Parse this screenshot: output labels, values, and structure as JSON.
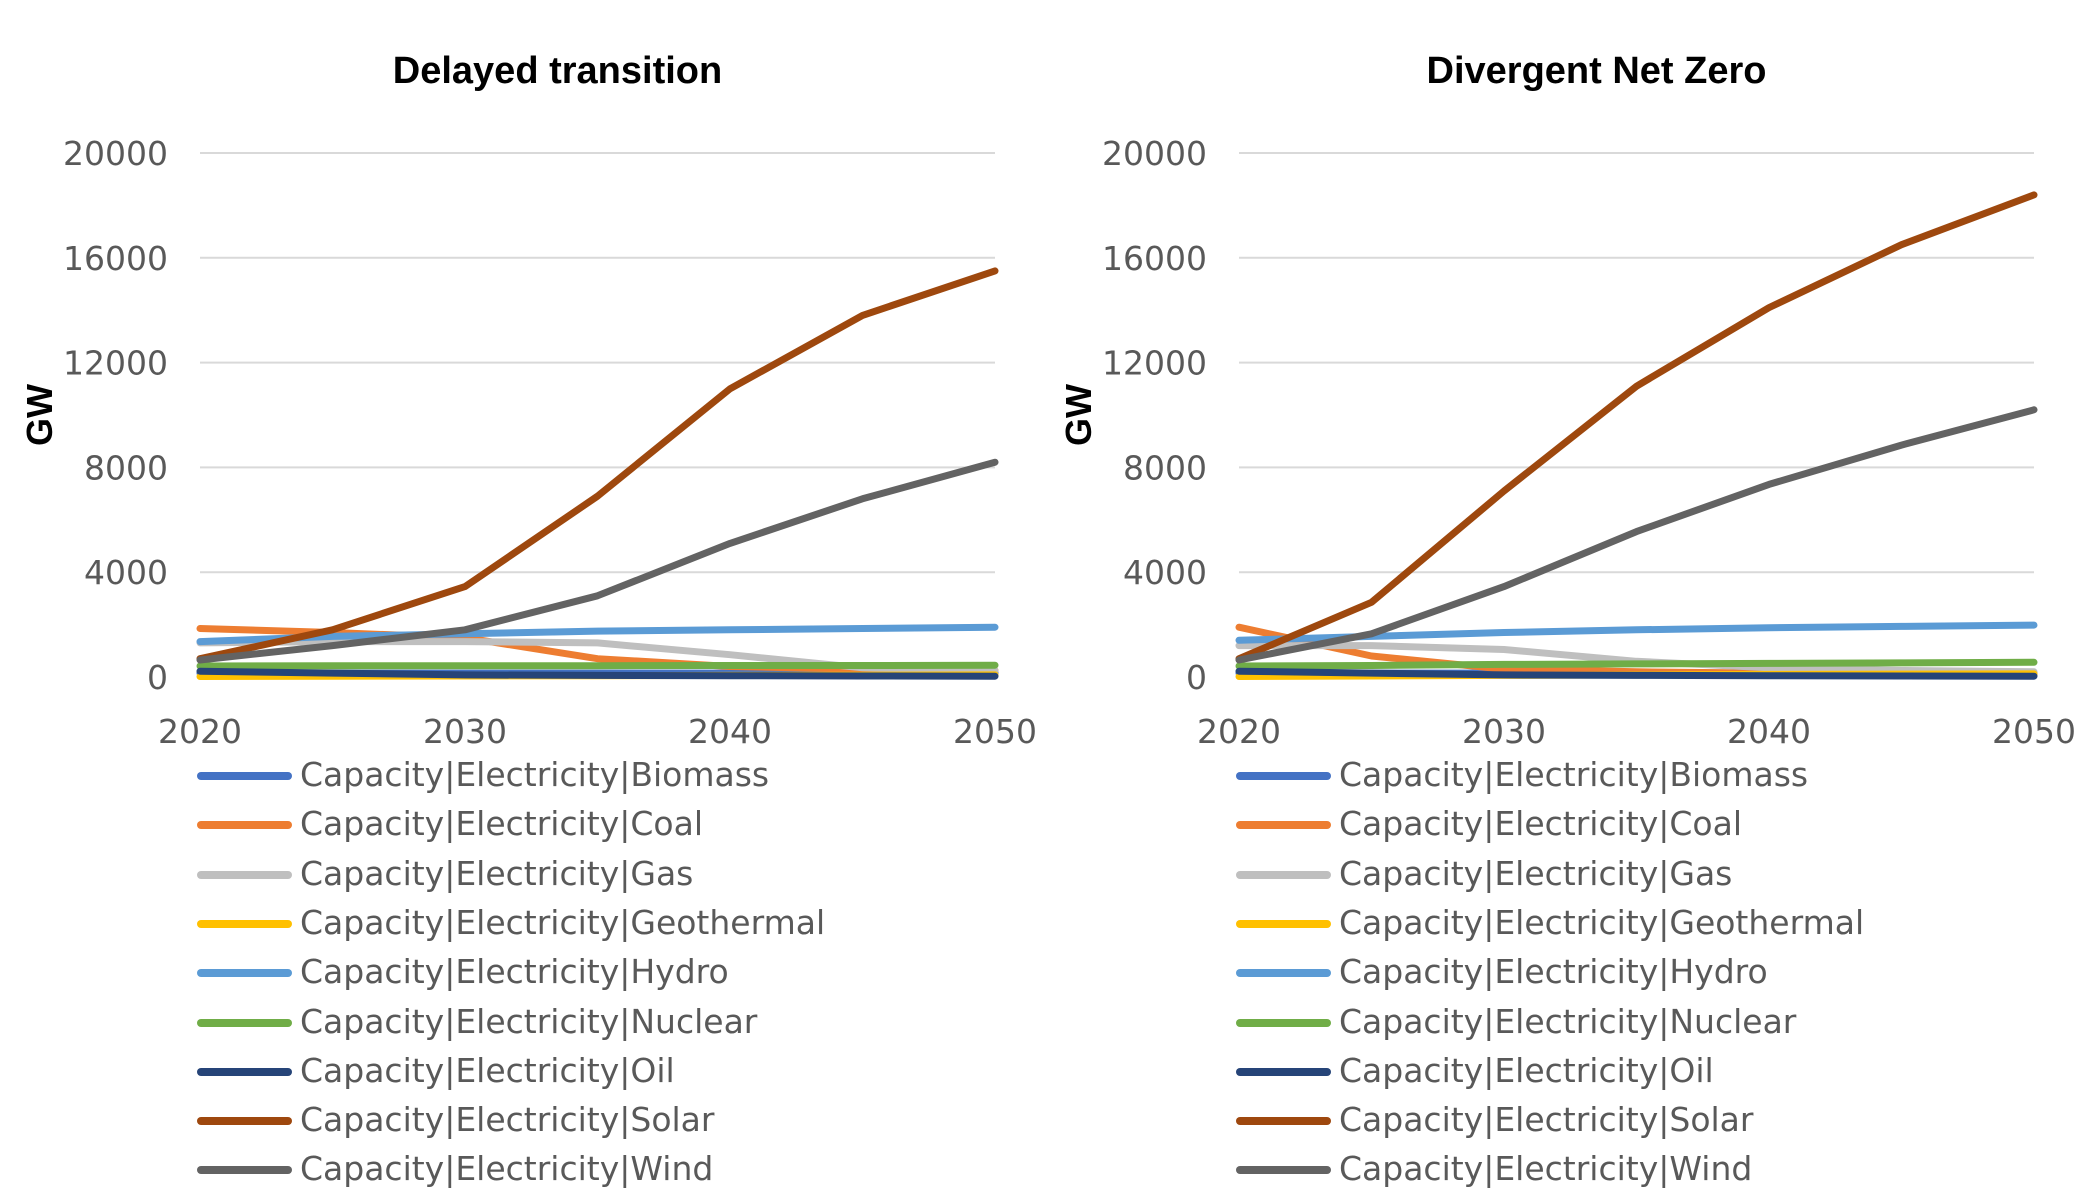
{
  "chart_data": [
    {
      "type": "line",
      "title": "Delayed transition",
      "xlabel": "",
      "ylabel": "GW",
      "ylim": [
        0,
        20000
      ],
      "yticks": [
        "0",
        "4000",
        "8000",
        "12000",
        "16000",
        "20000"
      ],
      "xticks": [
        "2020",
        "2030",
        "2040",
        "2050"
      ],
      "x": [
        2020,
        2025,
        2030,
        2035,
        2040,
        2045,
        2050
      ],
      "grid": "horizontal",
      "legend_position": "bottom",
      "series": [
        {
          "name": "Capacity|Electricity|Biomass",
          "color": "#4472c4",
          "values": [
            150,
            150,
            150,
            150,
            150,
            150,
            150
          ]
        },
        {
          "name": "Capacity|Electricity|Coal",
          "color": "#ed7d31",
          "values": [
            1850,
            1700,
            1500,
            700,
            400,
            300,
            250
          ]
        },
        {
          "name": "Capacity|Electricity|Gas",
          "color": "#bfbfbf",
          "values": [
            1300,
            1350,
            1350,
            1300,
            850,
            350,
            250
          ]
        },
        {
          "name": "Capacity|Electricity|Geothermal",
          "color": "#ffc000",
          "values": [
            20,
            30,
            40,
            50,
            60,
            70,
            80
          ]
        },
        {
          "name": "Capacity|Electricity|Hydro",
          "color": "#5b9bd5",
          "values": [
            1350,
            1550,
            1650,
            1750,
            1800,
            1850,
            1900
          ]
        },
        {
          "name": "Capacity|Electricity|Nuclear",
          "color": "#70ad47",
          "values": [
            420,
            430,
            430,
            430,
            440,
            440,
            450
          ]
        },
        {
          "name": "Capacity|Electricity|Oil",
          "color": "#264478",
          "values": [
            220,
            150,
            80,
            60,
            50,
            40,
            30
          ]
        },
        {
          "name": "Capacity|Electricity|Solar",
          "color": "#9e480e",
          "values": [
            700,
            1800,
            3450,
            6900,
            11000,
            13800,
            15500
          ]
        },
        {
          "name": "Capacity|Electricity|Wind",
          "color": "#636363",
          "values": [
            650,
            1200,
            1800,
            3100,
            5100,
            6800,
            8200
          ]
        }
      ]
    },
    {
      "type": "line",
      "title": "Divergent Net Zero",
      "xlabel": "",
      "ylabel": "GW",
      "ylim": [
        0,
        20000
      ],
      "yticks": [
        "0",
        "4000",
        "8000",
        "12000",
        "16000",
        "20000"
      ],
      "xticks": [
        "2020",
        "2030",
        "2040",
        "2050"
      ],
      "x": [
        2020,
        2025,
        2030,
        2035,
        2040,
        2045,
        2050
      ],
      "grid": "horizontal",
      "legend_position": "bottom",
      "series": [
        {
          "name": "Capacity|Electricity|Biomass",
          "color": "#4472c4",
          "values": [
            150,
            150,
            150,
            150,
            150,
            150,
            150
          ]
        },
        {
          "name": "Capacity|Electricity|Coal",
          "color": "#ed7d31",
          "values": [
            1900,
            800,
            300,
            200,
            150,
            100,
            100
          ]
        },
        {
          "name": "Capacity|Electricity|Gas",
          "color": "#bfbfbf",
          "values": [
            1200,
            1200,
            1050,
            600,
            350,
            250,
            200
          ]
        },
        {
          "name": "Capacity|Electricity|Geothermal",
          "color": "#ffc000",
          "values": [
            20,
            40,
            60,
            80,
            100,
            110,
            120
          ]
        },
        {
          "name": "Capacity|Electricity|Hydro",
          "color": "#5b9bd5",
          "values": [
            1400,
            1550,
            1700,
            1800,
            1880,
            1930,
            1980
          ]
        },
        {
          "name": "Capacity|Electricity|Nuclear",
          "color": "#70ad47",
          "values": [
            420,
            440,
            480,
            500,
            520,
            540,
            560
          ]
        },
        {
          "name": "Capacity|Electricity|Oil",
          "color": "#264478",
          "values": [
            220,
            150,
            80,
            60,
            50,
            40,
            30
          ]
        },
        {
          "name": "Capacity|Electricity|Solar",
          "color": "#9e480e",
          "values": [
            700,
            2850,
            7100,
            11100,
            14100,
            16500,
            18400
          ]
        },
        {
          "name": "Capacity|Electricity|Wind",
          "color": "#636363",
          "values": [
            650,
            1650,
            3450,
            5550,
            7350,
            8850,
            10200
          ]
        }
      ]
    }
  ]
}
